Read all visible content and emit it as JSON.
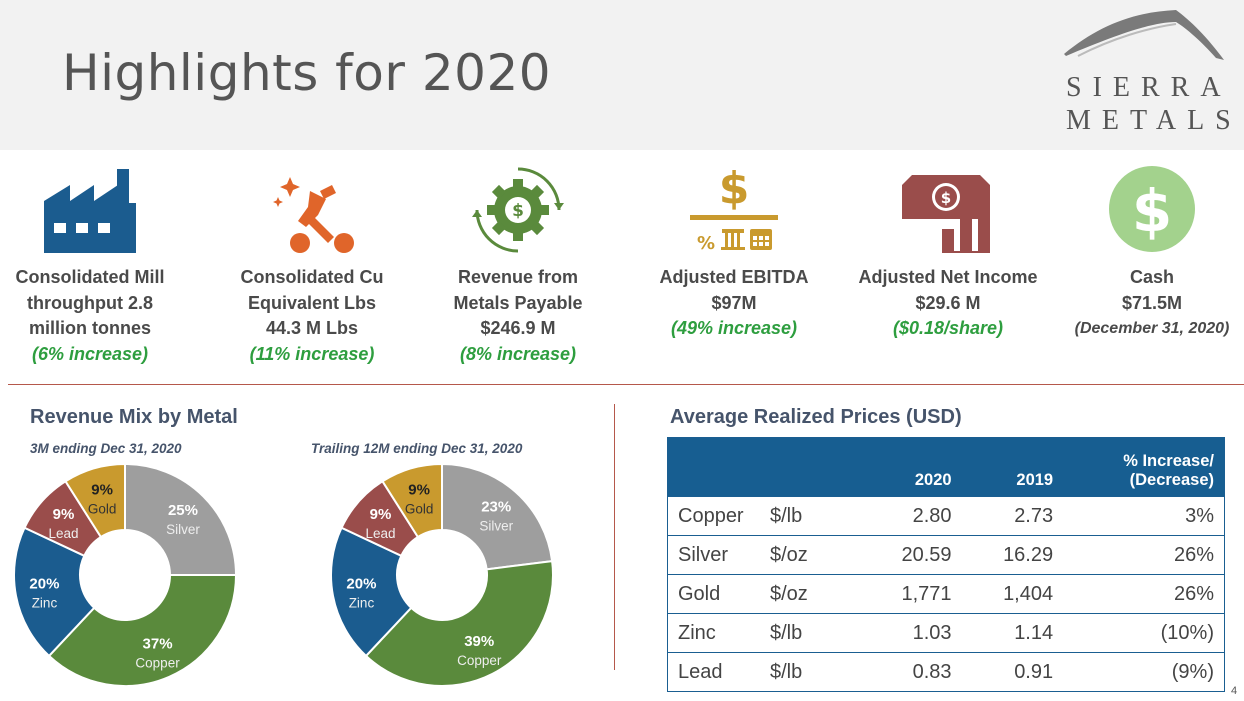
{
  "slide": {
    "title": "Highlights for 2020",
    "page_number": "4"
  },
  "logo": {
    "line1": "SIERRA",
    "line2": "METALS"
  },
  "kpis": [
    {
      "icon": "factory-icon",
      "lines": [
        "Consolidated Mill",
        "throughput 2.8",
        "million tonnes"
      ],
      "change": "(6% increase)"
    },
    {
      "icon": "pickaxe-icon",
      "lines": [
        "Consolidated Cu",
        "Equivalent Lbs",
        "44.3 M Lbs"
      ],
      "change": "(11% increase)"
    },
    {
      "icon": "gear-dollar-icon",
      "lines": [
        "Revenue from",
        "Metals Payable",
        "$246.9 M"
      ],
      "change": "(8% increase)"
    },
    {
      "icon": "ebitda-icon",
      "lines": [
        "Adjusted EBITDA",
        "$97M"
      ],
      "change": "(49% increase)"
    },
    {
      "icon": "banknote-chart-icon",
      "lines": [
        "Adjusted Net Income",
        "$29.6 M"
      ],
      "change": "($0.18/share)"
    },
    {
      "icon": "dollar-circle-icon",
      "lines": [
        "Cash",
        "$71.5M"
      ],
      "note": "(December 31, 2020)"
    }
  ],
  "revenue_mix": {
    "title": "Revenue Mix by Metal"
  },
  "prices": {
    "title": "Average Realized Prices (USD)",
    "headers": [
      "",
      "",
      "2020",
      "2019",
      "% Increase/",
      "(Decrease)"
    ],
    "rows": [
      {
        "metal": "Copper",
        "unit": "$/lb",
        "y2020": "2.80",
        "y2019": "2.73",
        "change": "3%"
      },
      {
        "metal": "Silver",
        "unit": "$/oz",
        "y2020": "20.59",
        "y2019": "16.29",
        "change": "26%"
      },
      {
        "metal": "Gold",
        "unit": "$/oz",
        "y2020": "1,771",
        "y2019": "1,404",
        "change": "26%"
      },
      {
        "metal": "Zinc",
        "unit": "$/lb",
        "y2020": "1.03",
        "y2019": "1.14",
        "change": "(10%)"
      },
      {
        "metal": "Lead",
        "unit": "$/lb",
        "y2020": "0.83",
        "y2019": "0.91",
        "change": "(9%)"
      }
    ]
  },
  "colors": {
    "silver": "#9e9e9e",
    "copper": "#5a8a3c",
    "zinc": "#1b5c8f",
    "lead": "#9a4d4b",
    "gold": "#c99a2e",
    "increase_green": "#2e9e3f",
    "table_header": "#175e91",
    "rule": "#b5584b"
  },
  "chart_data": [
    {
      "type": "pie",
      "subtitle": "3M ending Dec 31, 2020",
      "slices": [
        {
          "name": "Silver",
          "pct_label": "25%",
          "value": 25
        },
        {
          "name": "Copper",
          "pct_label": "37%",
          "value": 37
        },
        {
          "name": "Zinc",
          "pct_label": "20%",
          "value": 20
        },
        {
          "name": "Lead",
          "pct_label": "9%",
          "value": 9
        },
        {
          "name": "Gold",
          "pct_label": "9%",
          "value": 9
        }
      ]
    },
    {
      "type": "pie",
      "subtitle": "Trailing 12M ending Dec 31, 2020",
      "slices": [
        {
          "name": "Silver",
          "pct_label": "23%",
          "value": 23
        },
        {
          "name": "Copper",
          "pct_label": "39%",
          "value": 39
        },
        {
          "name": "Zinc",
          "pct_label": "20%",
          "value": 20
        },
        {
          "name": "Lead",
          "pct_label": "9%",
          "value": 9
        },
        {
          "name": "Gold",
          "pct_label": "9%",
          "value": 9
        }
      ]
    }
  ]
}
